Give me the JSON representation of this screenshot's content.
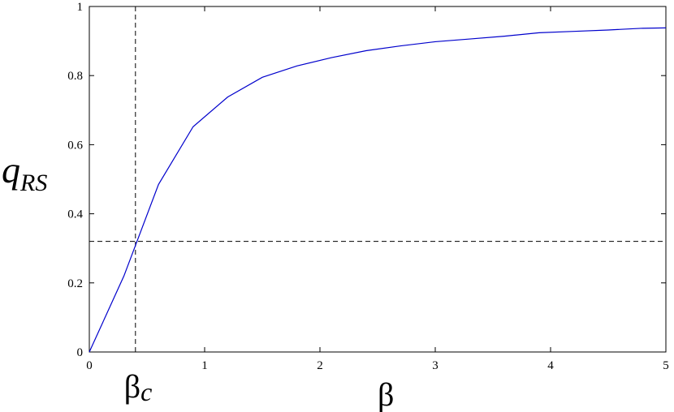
{
  "chart_data": {
    "type": "line",
    "xlabel": "β",
    "ylabel": {
      "main": "q",
      "subscript": "RS"
    },
    "xlim": [
      0,
      5
    ],
    "ylim": [
      0,
      1
    ],
    "x_ticks": [
      0,
      1,
      2,
      3,
      4,
      5
    ],
    "x_tick_labels": [
      "0",
      "1",
      "2",
      "3",
      "4",
      "5"
    ],
    "y_ticks": [
      0,
      0.2,
      0.4,
      0.6,
      0.8,
      1
    ],
    "y_tick_labels": [
      "0",
      "0.2",
      "0.4",
      "0.6",
      "0.8",
      "1"
    ],
    "grid": false,
    "series": [
      {
        "color": "#0000cc",
        "x": [
          0,
          0.3,
          0.6,
          0.9,
          1.2,
          1.5,
          1.8,
          2.1,
          2.4,
          2.7,
          3.0,
          3.3,
          3.6,
          3.9,
          4.2,
          4.5,
          4.8,
          5.0
        ],
        "y": [
          0,
          0.22,
          0.485,
          0.652,
          0.738,
          0.795,
          0.828,
          0.852,
          0.872,
          0.886,
          0.898,
          0.906,
          0.914,
          0.924,
          0.928,
          0.932,
          0.937,
          0.938
        ]
      }
    ],
    "reference_lines": {
      "color": "#000000",
      "style": "dashed",
      "vertical": {
        "x": 0.4,
        "label_main": "β",
        "label_subscript": "c"
      },
      "horizontal": {
        "y": 0.32
      }
    }
  }
}
